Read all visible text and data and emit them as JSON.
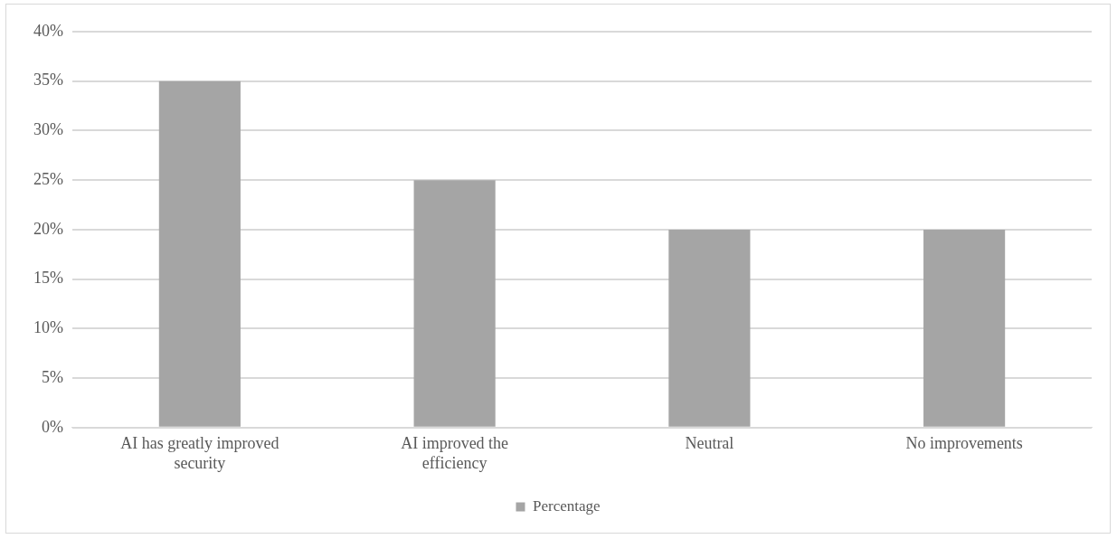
{
  "chart_data": {
    "type": "bar",
    "categories": [
      "AI has greatly improved security",
      "AI improved the efficiency",
      "Neutral",
      "No improvements"
    ],
    "series": [
      {
        "name": "Percentage",
        "color": "#a5a5a5",
        "values": [
          35,
          25,
          20,
          20
        ]
      }
    ],
    "ylim": [
      0,
      40
    ],
    "yticks": [
      {
        "value": 0,
        "label": "0%"
      },
      {
        "value": 5,
        "label": "5%"
      },
      {
        "value": 10,
        "label": "10%"
      },
      {
        "value": 15,
        "label": "15%"
      },
      {
        "value": 20,
        "label": "20%"
      },
      {
        "value": 25,
        "label": "25%"
      },
      {
        "value": 30,
        "label": "30%"
      },
      {
        "value": 35,
        "label": "35%"
      },
      {
        "value": 40,
        "label": "40%"
      }
    ],
    "grid": "y",
    "legend": "bottom"
  }
}
